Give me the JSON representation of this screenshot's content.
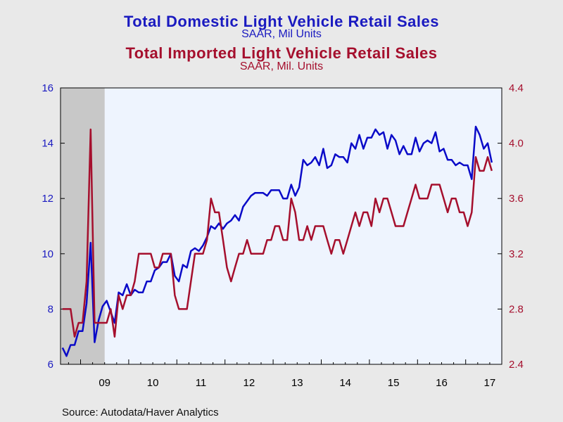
{
  "chart_data": {
    "type": "line",
    "titles": [
      {
        "title": "Total Domestic Light Vehicle Retail Sales",
        "subtitle": "SAAR, Mil Units",
        "color": "#1a1ac0"
      },
      {
        "title": "Total Imported Light Vehicle Retail Sales",
        "subtitle": "SAAR, Mil. Units",
        "color": "#a50f2d"
      }
    ],
    "x_ticks": [
      "09",
      "10",
      "11",
      "12",
      "13",
      "14",
      "15",
      "16",
      "17"
    ],
    "x_start": "2008-08",
    "x_end": "2017-09",
    "shaded_period": {
      "start": "2008-08",
      "end": "2009-06"
    },
    "y_left": {
      "ticks": [
        "6",
        "8",
        "10",
        "12",
        "14",
        "16"
      ],
      "ylim": [
        6,
        16
      ],
      "color": "#1a1ac0"
    },
    "y_right": {
      "ticks": [
        "2.4",
        "2.8",
        "3.2",
        "3.6",
        "4.0",
        "4.4"
      ],
      "ylim": [
        2.4,
        4.4
      ],
      "color": "#a50f2d"
    },
    "series": [
      {
        "axis": "left",
        "color": "#0a0ac8",
        "values": [
          6.6,
          6.3,
          6.7,
          6.7,
          7.2,
          7.2,
          8.2,
          10.4,
          6.8,
          7.6,
          8.1,
          8.3,
          7.9,
          7.5,
          8.6,
          8.5,
          8.9,
          8.5,
          8.7,
          8.6,
          8.6,
          9.0,
          9.0,
          9.4,
          9.5,
          9.7,
          9.7,
          10.0,
          9.2,
          9.0,
          9.6,
          9.5,
          10.1,
          10.2,
          10.1,
          10.3,
          10.6,
          11.0,
          10.9,
          11.1,
          10.9,
          11.1,
          11.2,
          11.4,
          11.2,
          11.7,
          11.9,
          12.1,
          12.2,
          12.2,
          12.2,
          12.1,
          12.3,
          12.3,
          12.3,
          12.0,
          12.0,
          12.5,
          12.1,
          12.4,
          13.4,
          13.2,
          13.3,
          13.5,
          13.2,
          13.8,
          13.1,
          13.2,
          13.6,
          13.5,
          13.5,
          13.3,
          14.0,
          13.8,
          14.3,
          13.8,
          14.2,
          14.2,
          14.5,
          14.3,
          14.4,
          13.8,
          14.3,
          14.1,
          13.6,
          13.9,
          13.6,
          13.6,
          14.2,
          13.7,
          14.0,
          14.1,
          14.0,
          14.4,
          13.7,
          13.8,
          13.4,
          13.4,
          13.2,
          13.3,
          13.2,
          13.2,
          12.7,
          14.6,
          14.3,
          13.8,
          14.0,
          13.3
        ]
      },
      {
        "axis": "right",
        "color": "#a50f2d",
        "values": [
          2.8,
          2.8,
          2.8,
          2.6,
          2.7,
          2.7,
          3.0,
          4.1,
          2.7,
          2.7,
          2.7,
          2.7,
          2.8,
          2.6,
          2.9,
          2.8,
          2.9,
          2.9,
          3.0,
          3.2,
          3.2,
          3.2,
          3.2,
          3.1,
          3.1,
          3.2,
          3.2,
          3.2,
          2.9,
          2.8,
          2.8,
          2.8,
          3.0,
          3.2,
          3.2,
          3.2,
          3.3,
          3.6,
          3.5,
          3.5,
          3.3,
          3.1,
          3.0,
          3.1,
          3.2,
          3.2,
          3.3,
          3.2,
          3.2,
          3.2,
          3.2,
          3.3,
          3.3,
          3.4,
          3.4,
          3.3,
          3.3,
          3.6,
          3.5,
          3.3,
          3.3,
          3.4,
          3.3,
          3.4,
          3.4,
          3.4,
          3.3,
          3.2,
          3.3,
          3.3,
          3.2,
          3.3,
          3.4,
          3.5,
          3.4,
          3.5,
          3.5,
          3.4,
          3.6,
          3.5,
          3.6,
          3.6,
          3.5,
          3.4,
          3.4,
          3.4,
          3.5,
          3.6,
          3.7,
          3.6,
          3.6,
          3.6,
          3.7,
          3.7,
          3.7,
          3.6,
          3.5,
          3.6,
          3.6,
          3.5,
          3.5,
          3.4,
          3.5,
          3.9,
          3.8,
          3.8,
          3.9,
          3.8
        ]
      }
    ],
    "source": "Source:  Autodata/Haver Analytics"
  }
}
